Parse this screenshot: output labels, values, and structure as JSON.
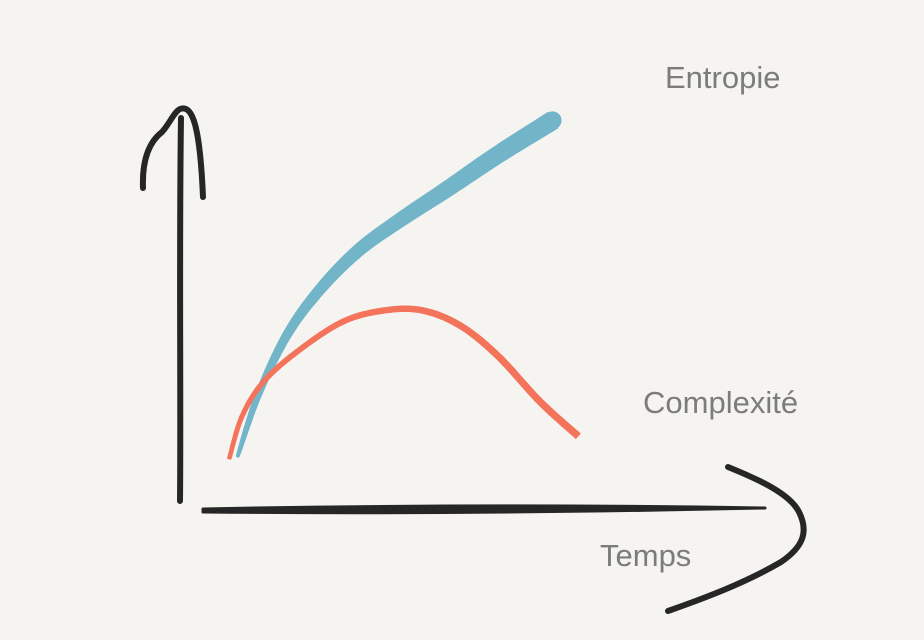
{
  "chart_data": {
    "type": "line",
    "xlabel": "Temps",
    "ylabel": "",
    "xlim": [
      0,
      10
    ],
    "ylim": [
      0,
      10
    ],
    "ticks": "none",
    "grid": false,
    "legend": "none (series labelled at line ends)",
    "background": "#f6f4f1",
    "axis_color": "#262626",
    "series": [
      {
        "name": "Entropie",
        "color": "#72b5c9",
        "x": [
          0.3,
          0.8,
          1.5,
          2.3,
          3.2,
          4.2,
          5.3,
          6.5,
          7.8
        ],
        "y": [
          0.35,
          2.0,
          3.6,
          4.8,
          5.8,
          6.6,
          7.4,
          8.3,
          9.2
        ]
      },
      {
        "name": "Complexité",
        "color": "#f4735b",
        "x": [
          0.1,
          0.4,
          0.9,
          1.7,
          2.8,
          3.8,
          4.7,
          5.6,
          6.5,
          7.5,
          8.4
        ],
        "y": [
          0.3,
          1.4,
          2.3,
          3.1,
          3.9,
          4.2,
          4.2,
          3.8,
          3.0,
          1.8,
          0.9
        ]
      }
    ]
  }
}
